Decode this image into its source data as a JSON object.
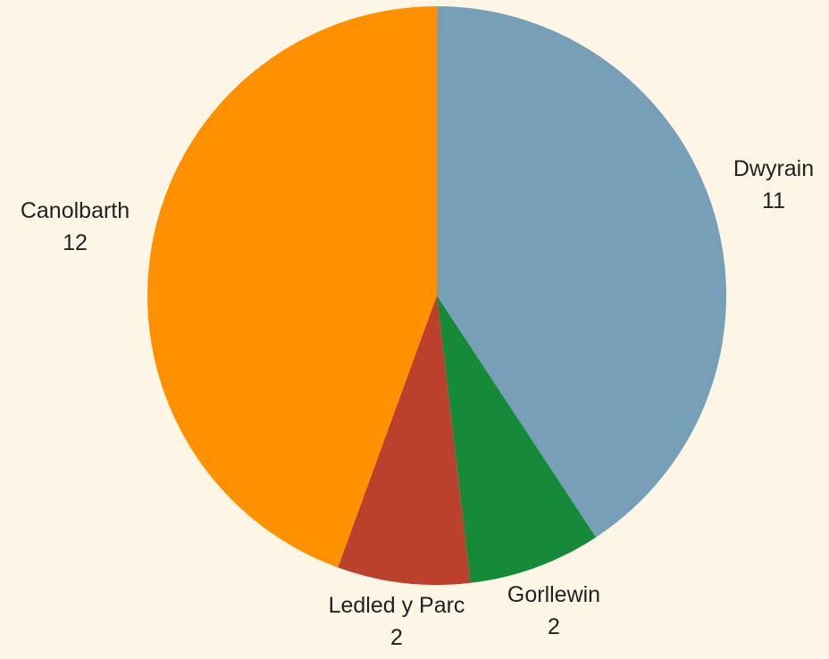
{
  "chart_data": {
    "type": "pie",
    "title": "",
    "slices": [
      {
        "label": "Dwyrain",
        "value": 11,
        "value_label": "11",
        "color": "#77a0b8"
      },
      {
        "label": "Gorllewin",
        "value": 2,
        "value_label": "2",
        "color": "#168a38"
      },
      {
        "label": "Ledled y Parc",
        "value": 2,
        "value_label": "2",
        "color": "#bb412d"
      },
      {
        "label": "Canolbarth",
        "value": 12,
        "value_label": "12",
        "color": "#ff9100"
      }
    ],
    "start_angle": "12 o'clock",
    "direction": "clockwise",
    "legend": "none",
    "background": "#fdf6e6"
  }
}
